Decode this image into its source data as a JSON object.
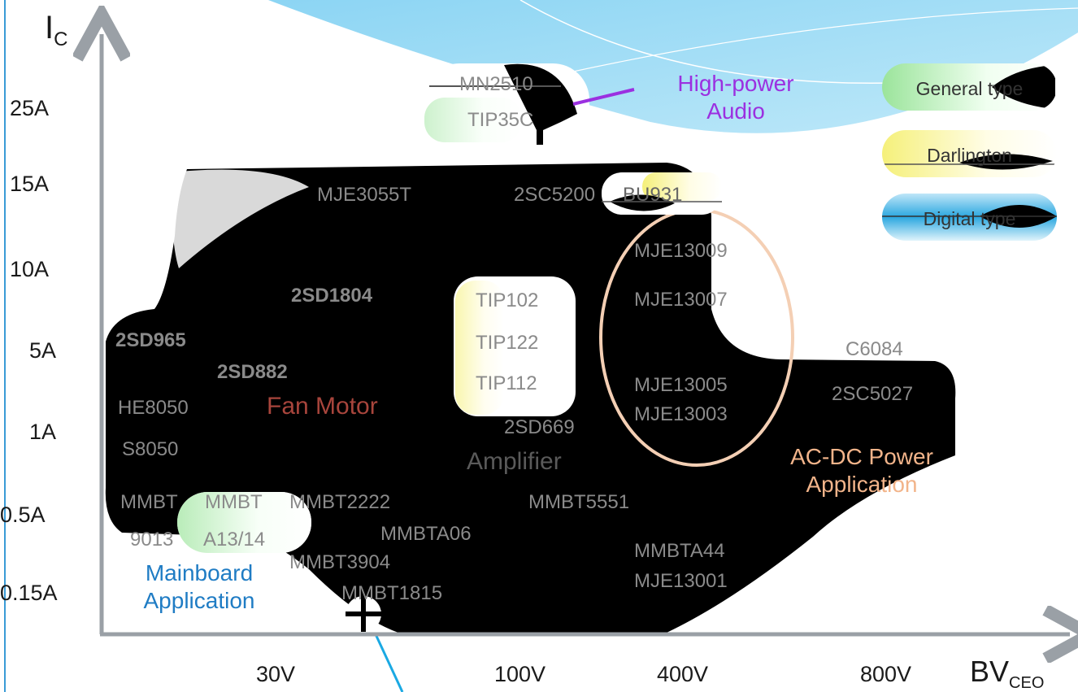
{
  "axes": {
    "y_label_main": "I",
    "y_label_sub": "C",
    "x_label_main": "BV",
    "x_label_sub": "CEO",
    "y_ticks": [
      "25A",
      "15A",
      "10A",
      "5A",
      "1A",
      "0.5A",
      "0.15A"
    ],
    "x_ticks": [
      "30V",
      "100V",
      "400V",
      "800V"
    ]
  },
  "legend": {
    "general": "General type",
    "darlington": "Darlington",
    "digital": "Digital type"
  },
  "applications": {
    "audio_line1": "High-power",
    "audio_line2": "Audio",
    "fan": "Fan Motor",
    "amplifier": "Amplifier",
    "acdc_line1": "AC-DC Power",
    "acdc_line2": "Application",
    "mainboard_line1": "Mainboard",
    "mainboard_line2": "Application"
  },
  "parts": {
    "mn2510": "MN2510",
    "tip35c": "TIP35C",
    "mje3055t": "MJE3055T",
    "2sc5200": "2SC5200",
    "bu931": "BU931",
    "mje13009": "MJE13009",
    "mje13007": "MJE13007",
    "mje13005": "MJE13005",
    "mje13003": "MJE13003",
    "2sd1804": "2SD1804",
    "2sd965": "2SD965",
    "2sd882": "2SD882",
    "he8050": "HE8050",
    "s8050": "S8050",
    "tip102": "TIP102",
    "tip122": "TIP122",
    "tip112": "TIP112",
    "2sd669": "2SD669",
    "c6084": "C6084",
    "2sc5027": "2SC5027",
    "mmbt_a": "MMBT",
    "mmbt_a2": "9013",
    "mmbt_b": "MMBT",
    "mmbt_b2": "A13/14",
    "mmbt2222": "MMBT2222",
    "mmbta06": "MMBTA06",
    "mmbt3904": "MMBT3904",
    "mmbt1815": "MMBT1815",
    "mmbt5551": "MMBT5551",
    "mmbta44": "MMBTA44",
    "mje13001": "MJE13001"
  },
  "colors": {
    "axis": "#9aa0a6",
    "fan": "#a8453c",
    "amplifier": "#7a7a7a",
    "audio": "#9b30e0",
    "acdc": "#f2b48a",
    "mainboard": "#1f7cc4",
    "ellipse": "#f4cfb4",
    "callout": "#1aa9e3"
  }
}
